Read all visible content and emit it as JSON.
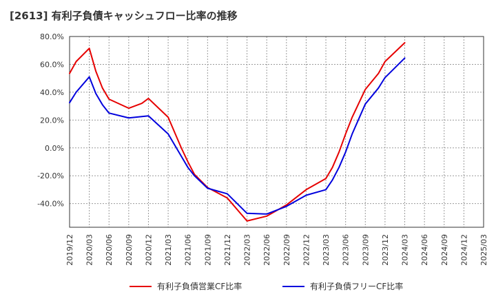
{
  "chart_data": {
    "type": "line",
    "title": "[2613]  有利子負債キャッシュフロー比率の推移",
    "xlabel": "",
    "ylabel": "",
    "ylim": [
      -57,
      80
    ],
    "yticks": [
      80,
      60,
      40,
      20,
      0,
      -20,
      -40
    ],
    "ytick_labels": [
      "80.0%",
      "60.0%",
      "40.0%",
      "20.0%",
      "0.0%",
      "-20.0%",
      "-40.0%"
    ],
    "x_labels": [
      "2019/12",
      "2020/03",
      "2020/06",
      "2020/09",
      "2020/12",
      "2021/03",
      "2021/06",
      "2021/09",
      "2021/12",
      "2022/03",
      "2022/06",
      "2022/09",
      "2022/12",
      "2023/03",
      "2023/06",
      "2023/09",
      "2023/12",
      "2024/03",
      "2024/06",
      "2024/09",
      "2024/12",
      "2025/03"
    ],
    "grid": true,
    "legend_position": "bottom",
    "series": [
      {
        "name": "有利子負債営業CF比率",
        "color": "#e60000",
        "points": [
          [
            "2019/12",
            53.5
          ],
          [
            "2020/01",
            62
          ],
          [
            "2020/03",
            71.5
          ],
          [
            "2020/04",
            55
          ],
          [
            "2020/05",
            43
          ],
          [
            "2020/06",
            35
          ],
          [
            "2020/09",
            28.5
          ],
          [
            "2020/11",
            32
          ],
          [
            "2020/12",
            35.5
          ],
          [
            "2021/03",
            22
          ],
          [
            "2021/05",
            0
          ],
          [
            "2021/06",
            -10
          ],
          [
            "2021/07",
            -19
          ],
          [
            "2021/09",
            -28.5
          ],
          [
            "2021/12",
            -36
          ],
          [
            "2022/03",
            -52.5
          ],
          [
            "2022/06",
            -49
          ],
          [
            "2022/09",
            -41
          ],
          [
            "2022/12",
            -30
          ],
          [
            "2023/03",
            -22
          ],
          [
            "2023/04",
            -14
          ],
          [
            "2023/05",
            -3
          ],
          [
            "2023/06",
            10
          ],
          [
            "2023/07",
            22
          ],
          [
            "2023/09",
            42
          ],
          [
            "2023/11",
            53.5
          ],
          [
            "2023/12",
            62
          ],
          [
            "2024/03",
            75.5
          ]
        ]
      },
      {
        "name": "有利子負債フリーCF比率",
        "color": "#0000dd",
        "points": [
          [
            "2019/12",
            32.5
          ],
          [
            "2020/01",
            40
          ],
          [
            "2020/03",
            51
          ],
          [
            "2020/04",
            39
          ],
          [
            "2020/05",
            31
          ],
          [
            "2020/06",
            25
          ],
          [
            "2020/09",
            21.5
          ],
          [
            "2020/12",
            23
          ],
          [
            "2021/03",
            10
          ],
          [
            "2021/05",
            -6
          ],
          [
            "2021/06",
            -14
          ],
          [
            "2021/07",
            -20
          ],
          [
            "2021/09",
            -29
          ],
          [
            "2021/12",
            -33
          ],
          [
            "2022/03",
            -47
          ],
          [
            "2022/06",
            -47.5
          ],
          [
            "2022/09",
            -42
          ],
          [
            "2022/12",
            -34
          ],
          [
            "2023/03",
            -30
          ],
          [
            "2023/04",
            -23
          ],
          [
            "2023/05",
            -14
          ],
          [
            "2023/06",
            -3
          ],
          [
            "2023/07",
            10
          ],
          [
            "2023/09",
            31.5
          ],
          [
            "2023/11",
            43
          ],
          [
            "2023/12",
            50.5
          ],
          [
            "2024/03",
            64.5
          ]
        ]
      }
    ]
  }
}
